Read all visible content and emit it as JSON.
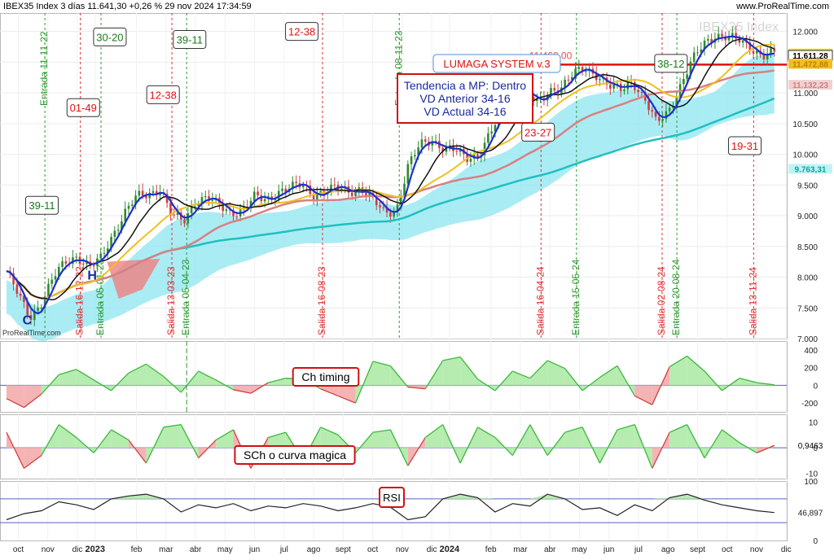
{
  "header": {
    "left": "IBEX35 Index 3 días 11.641,30 +0,26 % 29 nov 2024 17:34:59",
    "right": "www.ProRealTime.com",
    "watermark": "IBEX35 Index",
    "provider": "ProRealTime.com"
  },
  "overlay": {
    "system_title": "LUMAGA SYSTEM v.3",
    "tendency_lines": [
      "Tendencia a MP: Dentro",
      "VD Anterior 34-16",
      "VD Actual 34-16"
    ],
    "resistance_label": "11.460,00",
    "pattern_labels": [
      "C",
      "H"
    ]
  },
  "colors": {
    "candle_up": "#2e8b2e",
    "candle_down": "#c94040",
    "ma_fast": "#1f2fd0",
    "ma_black": "#111111",
    "ma_yellow": "#f0c020",
    "ma_salmon": "#d98080",
    "ma_teal": "#20c0c0",
    "cloud_up": "#8ee6f0",
    "cloud_down": "#f08080",
    "entry_line": "#2e9a2e",
    "exit_line": "#e03030",
    "resistance": "#e01010"
  },
  "chart_data": [
    {
      "type": "candlestick",
      "panel": "price",
      "ylim": [
        7000,
        12300
      ],
      "yticks": [
        "12.000",
        "11.500",
        "11.000",
        "10.500",
        "10.000",
        "9.500",
        "9.000",
        "8.500",
        "8.000",
        "7.500",
        "7.000"
      ],
      "price_labels": [
        {
          "text": "11.641,30",
          "value": 11641,
          "color": "#f0e020"
        },
        {
          "text": "11.611,28",
          "value": 11611,
          "color": "#ffffff"
        },
        {
          "text": "11.472,88",
          "value": 11473,
          "color": "#f0c020"
        },
        {
          "text": "11.132,23",
          "value": 11132,
          "color": "#f0d0d0"
        },
        {
          "text": "9.763,31",
          "value": 9763,
          "color": "#c0f4f4"
        }
      ],
      "x_months": [
        {
          "label": "oct",
          "m": 0.4
        },
        {
          "label": "nov",
          "m": 1.4
        },
        {
          "label": "dic",
          "m": 2.4
        },
        {
          "label": "2023",
          "m": 3.0,
          "bold": true
        },
        {
          "label": "feb",
          "m": 4.4
        },
        {
          "label": "mar",
          "m": 5.4
        },
        {
          "label": "abr",
          "m": 6.4
        },
        {
          "label": "may",
          "m": 7.4
        },
        {
          "label": "jun",
          "m": 8.4
        },
        {
          "label": "jul",
          "m": 9.4
        },
        {
          "label": "ago",
          "m": 10.4
        },
        {
          "label": "sept",
          "m": 11.4
        },
        {
          "label": "oct",
          "m": 12.4
        },
        {
          "label": "nov",
          "m": 13.4
        },
        {
          "label": "dic",
          "m": 14.4
        },
        {
          "label": "2024",
          "m": 15.0,
          "bold": true
        },
        {
          "label": "feb",
          "m": 16.4
        },
        {
          "label": "mar",
          "m": 17.4
        },
        {
          "label": "abr",
          "m": 18.4
        },
        {
          "label": "may",
          "m": 19.4
        },
        {
          "label": "jun",
          "m": 20.4
        },
        {
          "label": "jul",
          "m": 21.4
        },
        {
          "label": "ago",
          "m": 22.4
        },
        {
          "label": "sept",
          "m": 23.4
        },
        {
          "label": "oct",
          "m": 24.4
        },
        {
          "label": "nov",
          "m": 25.4
        },
        {
          "label": "dic",
          "m": 26.4
        }
      ],
      "price_path": [
        [
          0,
          8100
        ],
        [
          0.4,
          7700
        ],
        [
          0.8,
          7350
        ],
        [
          1.2,
          7600
        ],
        [
          1.6,
          8000
        ],
        [
          2.0,
          8250
        ],
        [
          2.4,
          8350
        ],
        [
          2.8,
          8150
        ],
        [
          3.2,
          8300
        ],
        [
          3.6,
          8700
        ],
        [
          4.0,
          9050
        ],
        [
          4.4,
          9300
        ],
        [
          4.8,
          9350
        ],
        [
          5.2,
          9450
        ],
        [
          5.6,
          9000
        ],
        [
          6.0,
          8900
        ],
        [
          6.4,
          9250
        ],
        [
          6.8,
          9300
        ],
        [
          7.2,
          9150
        ],
        [
          7.6,
          9050
        ],
        [
          8.0,
          9100
        ],
        [
          8.4,
          9300
        ],
        [
          8.8,
          9250
        ],
        [
          9.2,
          9400
        ],
        [
          9.6,
          9450
        ],
        [
          10.0,
          9500
        ],
        [
          10.4,
          9350
        ],
        [
          10.8,
          9400
        ],
        [
          11.2,
          9450
        ],
        [
          11.6,
          9400
        ],
        [
          12.0,
          9450
        ],
        [
          12.4,
          9250
        ],
        [
          12.8,
          9050
        ],
        [
          13.2,
          9100
        ],
        [
          13.6,
          9800
        ],
        [
          14.0,
          10150
        ],
        [
          14.4,
          10250
        ],
        [
          14.8,
          10100
        ],
        [
          15.2,
          10050
        ],
        [
          15.6,
          9950
        ],
        [
          16.0,
          10000
        ],
        [
          16.4,
          10350
        ],
        [
          16.8,
          10700
        ],
        [
          17.2,
          11100
        ],
        [
          17.6,
          11000
        ],
        [
          18.0,
          10800
        ],
        [
          18.4,
          11050
        ],
        [
          18.8,
          11100
        ],
        [
          19.2,
          11300
        ],
        [
          19.6,
          11400
        ],
        [
          20.0,
          11300
        ],
        [
          20.4,
          11100
        ],
        [
          20.8,
          11050
        ],
        [
          21.2,
          11200
        ],
        [
          21.6,
          10900
        ],
        [
          22.0,
          10500
        ],
        [
          22.4,
          10700
        ],
        [
          22.8,
          11100
        ],
        [
          23.2,
          11500
        ],
        [
          23.6,
          11800
        ],
        [
          24.0,
          11950
        ],
        [
          24.4,
          11900
        ],
        [
          24.8,
          11850
        ],
        [
          25.2,
          11750
        ],
        [
          25.6,
          11600
        ],
        [
          26.0,
          11640
        ]
      ],
      "entries": [
        {
          "label": "Entrada 11-11-22",
          "m": 1.3
        },
        {
          "label": "Entrada 05-01-23",
          "m": 3.2
        },
        {
          "label": "Entrada 05-04-23",
          "m": 6.1
        },
        {
          "label": "Entrada 08-11-23",
          "m": 13.3
        },
        {
          "label": "Entrada 15-05-24",
          "m": 19.3
        },
        {
          "label": "Entrada 20-08-24",
          "m": 22.7
        }
      ],
      "exits": [
        {
          "label": "Salida 16-12-22",
          "m": 2.5
        },
        {
          "label": "Salida 13-03-23",
          "m": 5.6
        },
        {
          "label": "Salida 16-08-23",
          "m": 10.7
        },
        {
          "label": "Salida 16-04-24",
          "m": 18.1
        },
        {
          "label": "Salida 02-08-24",
          "m": 22.2
        },
        {
          "label": "Salida 13-11-24",
          "m": 25.3
        }
      ],
      "signals": [
        {
          "label": "39-11",
          "m": 1.2,
          "value": 9170,
          "color": "#1a7a1a"
        },
        {
          "label": "01-49",
          "m": 2.6,
          "value": 10760,
          "color": "#e01010"
        },
        {
          "label": "30-20",
          "m": 3.5,
          "value": 11910,
          "color": "#1a7a1a"
        },
        {
          "label": "12-38",
          "m": 5.3,
          "value": 10970,
          "color": "#e01010"
        },
        {
          "label": "39-11",
          "m": 6.2,
          "value": 11870,
          "color": "#1a7a1a"
        },
        {
          "label": "12-38",
          "m": 10.0,
          "value": 12000,
          "color": "#e01010"
        },
        {
          "label": "23-27",
          "m": 18.0,
          "value": 10360,
          "color": "#e01010"
        },
        {
          "label": "38-12",
          "m": 22.5,
          "value": 11480,
          "color": "#1a7a1a"
        },
        {
          "label": "19-31",
          "m": 25.0,
          "value": 10140,
          "color": "#e01010"
        }
      ],
      "resistance_level": 11460
    },
    {
      "type": "area",
      "panel": "indicator",
      "title": "Ch timing",
      "ylim": [
        -300,
        500
      ],
      "yticks": [
        "400",
        "200",
        "0",
        "-200"
      ],
      "values": [
        -150,
        -250,
        -100,
        120,
        180,
        60,
        -60,
        140,
        240,
        100,
        -80,
        160,
        60,
        -50,
        -90,
        30,
        80,
        70,
        -40,
        -120,
        -200,
        270,
        220,
        -20,
        -40,
        280,
        320,
        70,
        -60,
        160,
        80,
        280,
        190,
        -60,
        90,
        220,
        -120,
        -220,
        210,
        330,
        160,
        -60,
        80,
        30,
        5
      ]
    },
    {
      "type": "area",
      "panel": "indicator",
      "title": "SCh o curva magica",
      "ylim": [
        -12,
        13
      ],
      "yticks": [
        "10",
        "0",
        "-10"
      ],
      "last_value": "0,9463",
      "values": [
        6,
        -8,
        -3,
        9,
        4,
        -2,
        7,
        3,
        -6,
        8,
        9,
        -4,
        3,
        7,
        -8,
        4,
        6,
        -5,
        8,
        5,
        -2,
        6,
        7,
        -7,
        4,
        9,
        -6,
        8,
        4,
        -3,
        9,
        -3,
        6,
        8,
        -6,
        7,
        9,
        -8,
        6,
        9,
        -4,
        7,
        2,
        -2,
        0.9
      ]
    },
    {
      "type": "line",
      "panel": "indicator",
      "title": "RSI",
      "ylim": [
        0,
        100
      ],
      "yticks": [
        "100",
        "0"
      ],
      "last_value": "46,897",
      "bands": [
        70,
        30
      ],
      "values": [
        35,
        45,
        50,
        65,
        60,
        52,
        70,
        75,
        78,
        70,
        48,
        60,
        55,
        62,
        50,
        58,
        55,
        62,
        58,
        50,
        55,
        62,
        56,
        35,
        40,
        70,
        78,
        72,
        48,
        62,
        58,
        78,
        70,
        52,
        55,
        42,
        60,
        50,
        72,
        78,
        68,
        60,
        55,
        50,
        47
      ]
    }
  ]
}
